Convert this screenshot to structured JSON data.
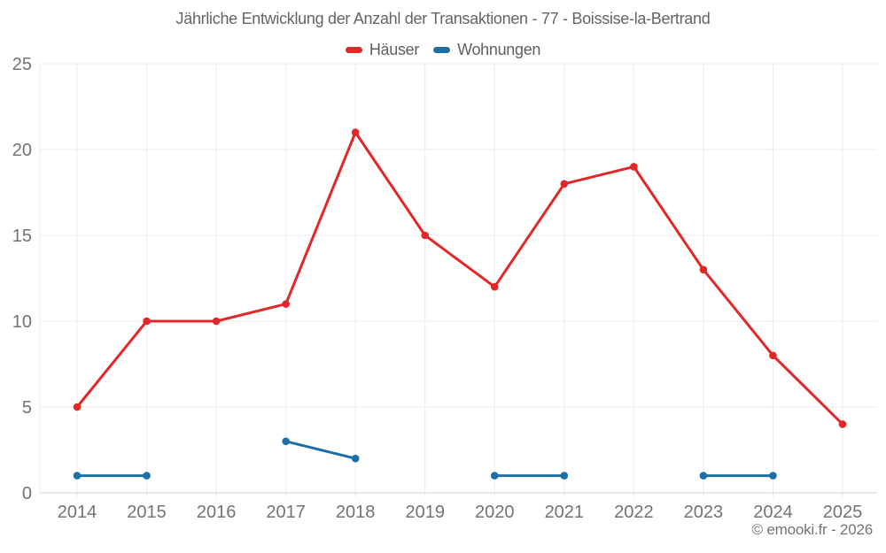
{
  "chart": {
    "title": "Jährliche Entwicklung der Anzahl der Transaktionen - 77 - Boissise-la-Bertrand"
  },
  "legend": {
    "items": [
      {
        "label": "Häuser",
        "color": "#e12728"
      },
      {
        "label": "Wohnungen",
        "color": "#1d6fa5"
      }
    ]
  },
  "chart_data": {
    "type": "line",
    "title": "Jährliche Entwicklung der Anzahl der Transaktionen - 77 - Boissise-la-Bertrand",
    "categories": [
      "2014",
      "2015",
      "2016",
      "2017",
      "2018",
      "2019",
      "2020",
      "2021",
      "2022",
      "2023",
      "2024",
      "2025"
    ],
    "series": [
      {
        "name": "Häuser",
        "color": "#e12728",
        "values": [
          5,
          10,
          10,
          11,
          21,
          15,
          12,
          18,
          19,
          13,
          8,
          4
        ]
      },
      {
        "name": "Wohnungen",
        "color": "#1d6fa5",
        "values": [
          1,
          1,
          null,
          3,
          2,
          null,
          1,
          1,
          null,
          1,
          1,
          null
        ]
      }
    ],
    "xlabel": "",
    "ylabel": "",
    "ylim": [
      0,
      25
    ],
    "yticks": [
      0,
      5,
      10,
      15,
      20,
      25
    ],
    "grid": true,
    "legend_position": "top"
  },
  "colors": {
    "grid": "#ebebeb",
    "axis": "#d2d2d2",
    "tick_label": "#737373",
    "title": "#646464"
  },
  "footer": {
    "copyright": "© emooki.fr - 2026"
  }
}
